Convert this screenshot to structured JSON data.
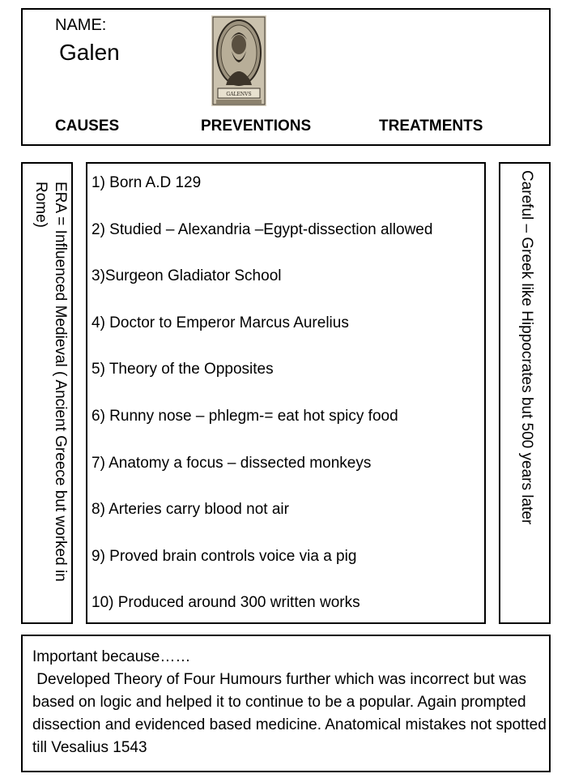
{
  "header": {
    "name_label": "NAME:",
    "name_value": "Galen",
    "portrait_caption": "GALENVS",
    "categories": [
      "CAUSES",
      "PREVENTIONS",
      "TREATMENTS"
    ]
  },
  "left_panel": {
    "text": "ERA = Influenced Medieval ( Ancient Greece but worked in Rome)"
  },
  "facts": [
    "1) Born A.D 129",
    "2) Studied – Alexandria –Egypt-dissection allowed",
    "3)Surgeon Gladiator School",
    "4) Doctor to Emperor Marcus Aurelius",
    "5) Theory of the Opposites",
    "6) Runny nose – phlegm-=  eat hot spicy food",
    "7) Anatomy  a focus – dissected monkeys",
    "8) Arteries carry blood not air",
    "9) Proved brain controls voice via a pig",
    "10) Produced around 300 written works"
  ],
  "right_panel": {
    "text": "Careful – Greek like Hippocrates but 500 years later"
  },
  "important": {
    "heading": "Important because……",
    "body": " Developed Theory of Four Humours further which was incorrect but was based on logic and helped it to continue to be a popular. Again prompted dissection and evidenced based medicine. Anatomical mistakes not spotted till Vesalius 1543"
  }
}
